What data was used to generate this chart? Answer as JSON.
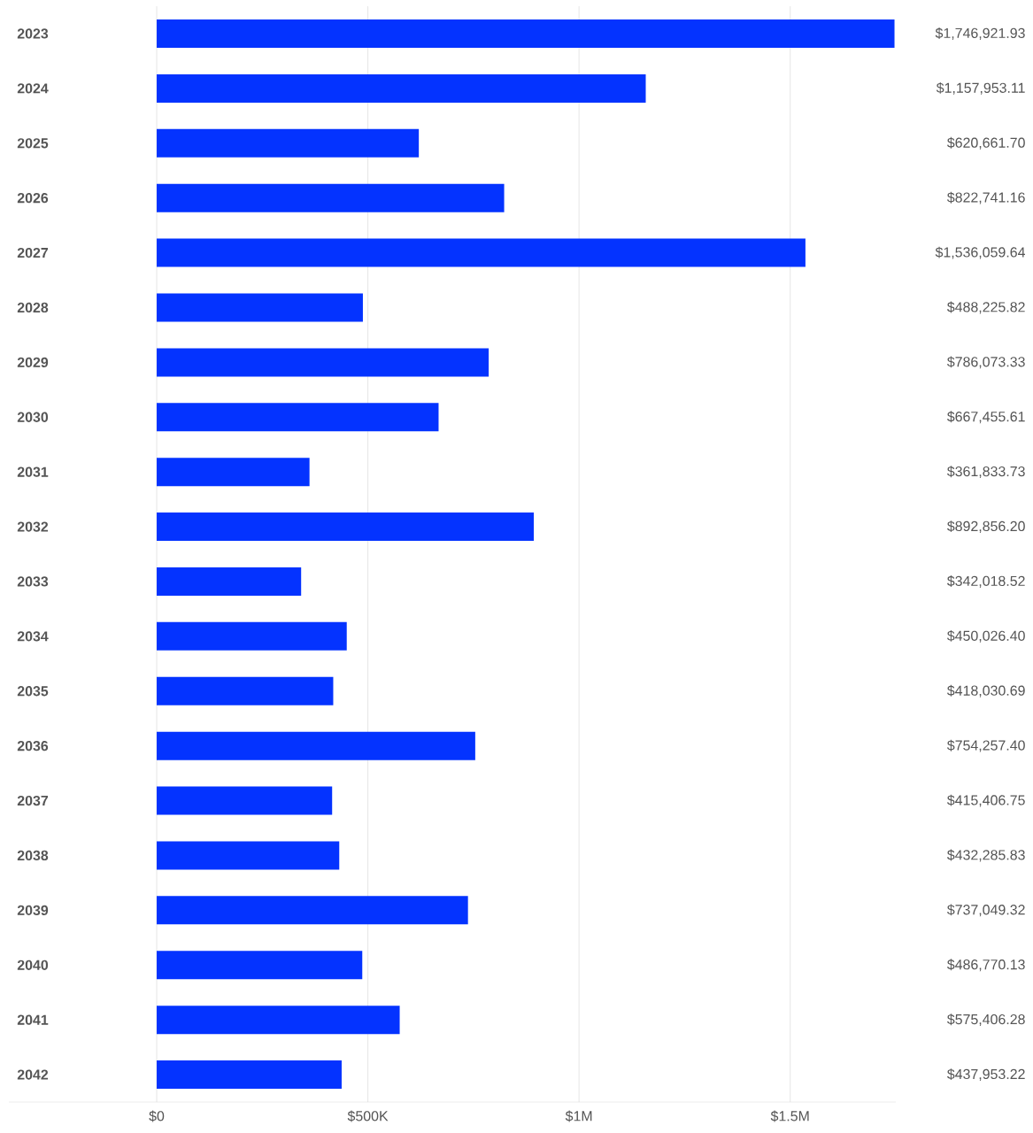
{
  "chart_data": {
    "type": "bar",
    "orientation": "horizontal",
    "categories": [
      "2023",
      "2024",
      "2025",
      "2026",
      "2027",
      "2028",
      "2029",
      "2030",
      "2031",
      "2032",
      "2033",
      "2034",
      "2035",
      "2036",
      "2037",
      "2038",
      "2039",
      "2040",
      "2041",
      "2042"
    ],
    "values": [
      1746921.93,
      1157953.11,
      620661.7,
      822741.16,
      1536059.64,
      488225.82,
      786073.33,
      667455.61,
      361833.73,
      892856.2,
      342018.52,
      450026.4,
      418030.69,
      754257.4,
      415406.75,
      432285.83,
      737049.32,
      486770.13,
      575406.28,
      437953.22
    ],
    "value_labels": [
      "$1,746,921.93",
      "$1,157,953.11",
      "$620,661.70",
      "$822,741.16",
      "$1,536,059.64",
      "$488,225.82",
      "$786,073.33",
      "$667,455.61",
      "$361,833.73",
      "$892,856.20",
      "$342,018.52",
      "$450,026.40",
      "$418,030.69",
      "$754,257.40",
      "$415,406.75",
      "$432,285.83",
      "$737,049.32",
      "$486,770.13",
      "$575,406.28",
      "$437,953.22"
    ],
    "color": "#0433ff",
    "xlim": [
      -350000,
      1750000
    ],
    "xticks": [
      {
        "value": 0,
        "label": "$0"
      },
      {
        "value": 500000,
        "label": "$500K"
      },
      {
        "value": 1000000,
        "label": "$1M"
      },
      {
        "value": 1500000,
        "label": "$1.5M"
      }
    ],
    "grid": "x"
  }
}
